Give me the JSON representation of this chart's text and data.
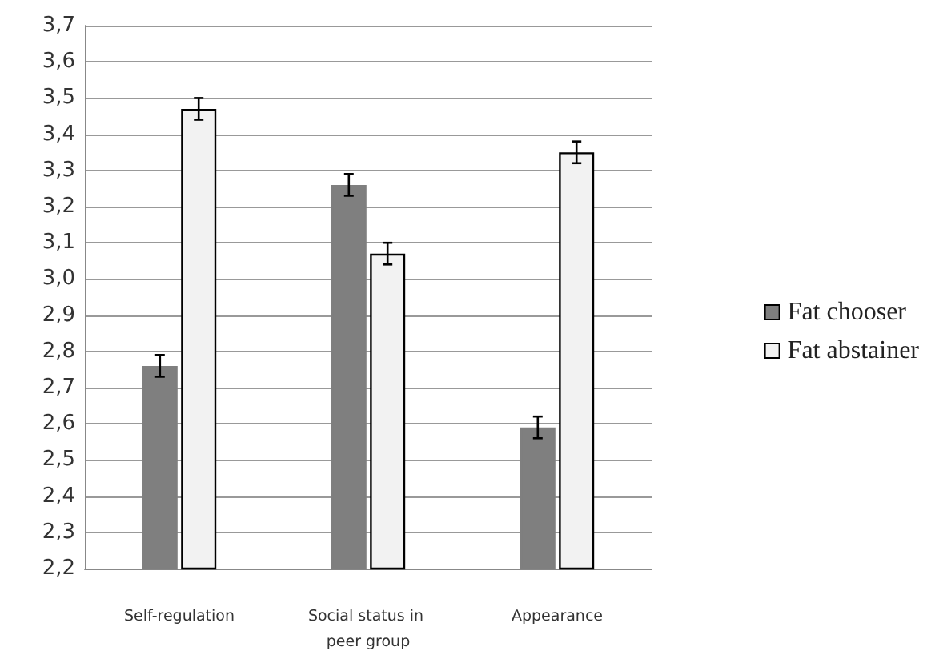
{
  "chart_data": {
    "type": "bar",
    "categories": [
      "Self-regulation",
      "Social status in peer group",
      "Appearance"
    ],
    "series": [
      {
        "name": "Fat chooser",
        "color": "#7f7f7f",
        "values": [
          2.76,
          3.26,
          2.59
        ],
        "errors": [
          0.03,
          0.03,
          0.03
        ]
      },
      {
        "name": "Fat abstainer",
        "color": "#f2f2f2",
        "values": [
          3.47,
          3.07,
          3.35
        ],
        "errors": [
          0.03,
          0.03,
          0.03
        ]
      }
    ],
    "ylim": [
      2.2,
      3.7
    ],
    "yticks": [
      {
        "value": 2.2,
        "label": "2,2"
      },
      {
        "value": 2.3,
        "label": "2,3"
      },
      {
        "value": 2.4,
        "label": "2,4"
      },
      {
        "value": 2.5,
        "label": "2,5"
      },
      {
        "value": 2.6,
        "label": "2,6"
      },
      {
        "value": 2.7,
        "label": "2,7"
      },
      {
        "value": 2.8,
        "label": "2,8"
      },
      {
        "value": 2.9,
        "label": "2,9"
      },
      {
        "value": 3.0,
        "label": "3,0"
      },
      {
        "value": 3.1,
        "label": "3,1"
      },
      {
        "value": 3.2,
        "label": "3,2"
      },
      {
        "value": 3.3,
        "label": "3,3"
      },
      {
        "value": 3.4,
        "label": "3,4"
      },
      {
        "value": 3.5,
        "label": "3,5"
      },
      {
        "value": 3.6,
        "label": "3,6"
      },
      {
        "value": 3.7,
        "label": "3,7"
      }
    ],
    "grid": "y",
    "legend": "right"
  }
}
